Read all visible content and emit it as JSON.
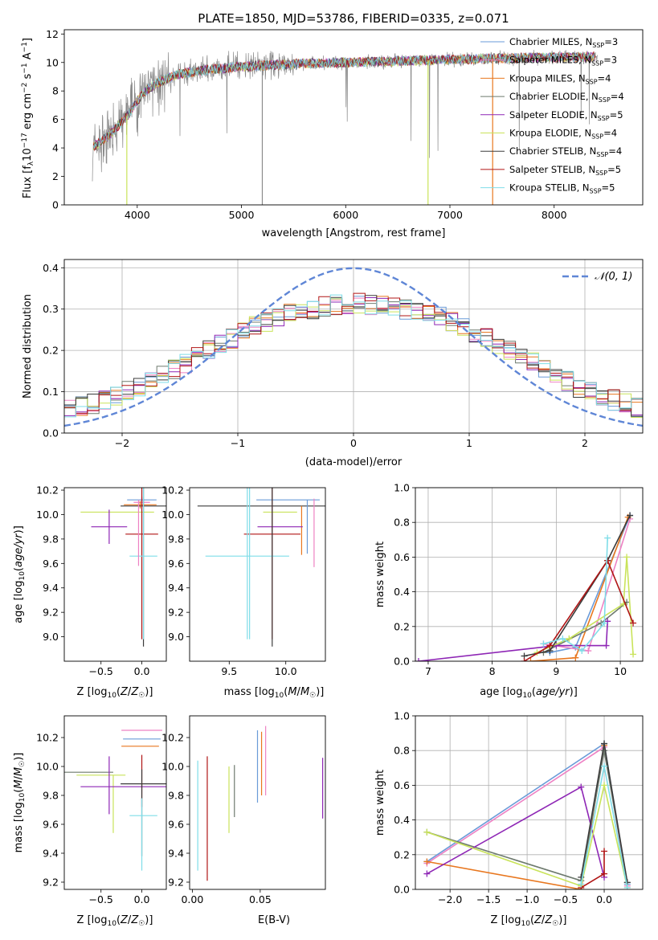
{
  "title": "PLATE=1850, MJD=53786, FIBERID=0335, z=0.071",
  "colors": [
    "#6a9bd8",
    "#ee82c4",
    "#e8771f",
    "#6e7a6e",
    "#8e26b5",
    "#c9e35a",
    "#3b3b3b",
    "#b01515",
    "#7fdde8"
  ],
  "chart_data": [
    {
      "type": "line",
      "panel": "spectrum",
      "xlabel": "wavelength [Angstrom, rest frame]",
      "ylabel": "Flux [f_λ 10^-17 erg cm^-2 s^-1 A^-1]",
      "xlim": [
        3300,
        8850
      ],
      "ylim": [
        0,
        12.3
      ],
      "xticks": [
        "4000",
        "5000",
        "6000",
        "7000",
        "8000"
      ],
      "yticks": [
        "0",
        "2",
        "4",
        "6",
        "8",
        "10",
        "12"
      ],
      "grid": false,
      "legend_position": "right",
      "legend": [
        {
          "label": "Chabrier MILES, N",
          "sub": "SSP",
          "suffix": "=3"
        },
        {
          "label": "Salpeter MILES, N",
          "sub": "SSP",
          "suffix": "=3"
        },
        {
          "label": "Kroupa MILES, N",
          "sub": "SSP",
          "suffix": "=4"
        },
        {
          "label": "Chabrier ELODIE, N",
          "sub": "SSP",
          "suffix": "=4"
        },
        {
          "label": "Salpeter ELODIE, N",
          "sub": "SSP",
          "suffix": "=5"
        },
        {
          "label": "Kroupa ELODIE, N",
          "sub": "SSP",
          "suffix": "=4"
        },
        {
          "label": "Chabrier STELIB, N",
          "sub": "SSP",
          "suffix": "=4"
        },
        {
          "label": "Salpeter STELIB, N",
          "sub": "SSP",
          "suffix": "=5"
        },
        {
          "label": "Kroupa STELIB, N",
          "sub": "SSP",
          "suffix": "=5"
        }
      ],
      "continuum": {
        "x": [
          3560,
          3700,
          3800,
          3900,
          4000,
          4100,
          4200,
          4400,
          4700,
          5000,
          5500,
          6000,
          6500,
          7000,
          7500,
          8000,
          8400
        ],
        "y": [
          4.0,
          4.7,
          5.4,
          6.2,
          7.3,
          8.1,
          8.6,
          9.2,
          9.5,
          9.7,
          9.9,
          10.0,
          10.1,
          10.2,
          10.3,
          10.35,
          10.4
        ]
      }
    },
    {
      "type": "bar",
      "panel": "residuals",
      "xlabel": "(data-model)/error",
      "ylabel": "Normed distribution",
      "xlim": [
        -2.5,
        2.5
      ],
      "ylim": [
        0,
        0.42
      ],
      "xticks": [
        "−2",
        "−1",
        "0",
        "1",
        "2"
      ],
      "yticks": [
        "0.0",
        "0.1",
        "0.2",
        "0.3",
        "0.4"
      ],
      "grid": true,
      "legend_position": "top-right",
      "normal_label": "𝒩(0, 1)",
      "bin_width": 0.1,
      "envelope": [
        0.06,
        0.065,
        0.07,
        0.08,
        0.09,
        0.1,
        0.11,
        0.125,
        0.14,
        0.155,
        0.17,
        0.185,
        0.2,
        0.215,
        0.23,
        0.245,
        0.26,
        0.27,
        0.28,
        0.29,
        0.295,
        0.3,
        0.305,
        0.31,
        0.31,
        0.315,
        0.31,
        0.31,
        0.305,
        0.3,
        0.295,
        0.29,
        0.28,
        0.27,
        0.26,
        0.245,
        0.23,
        0.215,
        0.2,
        0.185,
        0.17,
        0.155,
        0.14,
        0.125,
        0.11,
        0.1,
        0.09,
        0.08,
        0.07,
        0.06
      ]
    },
    {
      "type": "scatter",
      "panel": "age-vs-Z",
      "xlabel": "Z [log10(Z/Z☉)]",
      "ylabel": "age  [log10(age/yr)]",
      "xlim": [
        -0.95,
        0.3
      ],
      "ylim": [
        8.8,
        10.22
      ],
      "xticks": [
        "−0.5",
        "0.0"
      ],
      "yticks": [
        "9.0",
        "9.2",
        "9.4",
        "9.6",
        "9.8",
        "10.0",
        "10.2"
      ],
      "errorbars": [
        {
          "x": 0.0,
          "xerr": 0.18,
          "y": 10.12,
          "yerr": 0.02,
          "c": 0
        },
        {
          "x": 0.0,
          "xerr": 0.1,
          "y": 10.1,
          "yerr": 0.05,
          "c": 1
        },
        {
          "x": -0.02,
          "xerr": 0.2,
          "y": 10.08,
          "yerr": 0.03,
          "c": 2
        },
        {
          "x": -0.3,
          "xerr": 0.45,
          "y": 10.02,
          "yerr": 0.0,
          "c": 5
        },
        {
          "x": -0.4,
          "xerr": 0.22,
          "y": 9.9,
          "yerr": 0.14,
          "c": 4
        },
        {
          "x": 0.02,
          "xerr": 0.28,
          "y": 10.07,
          "yerr": 1.15,
          "c": 6
        },
        {
          "x": 0.0,
          "xerr": 0.2,
          "y": 9.84,
          "yerr": 0.86,
          "c": 7
        },
        {
          "x": 0.02,
          "xerr": 0.17,
          "y": 9.66,
          "yerr": 0.68,
          "c": 8
        },
        {
          "x": -0.04,
          "xerr": 0.0,
          "y": 9.85,
          "yerr": 0.27,
          "c": 1
        }
      ]
    },
    {
      "type": "scatter",
      "panel": "age-vs-mass",
      "xlabel": "mass [log10(M/M☉)]",
      "ylabel": "",
      "xlim": [
        9.15,
        10.35
      ],
      "ylim": [
        8.8,
        10.22
      ],
      "xticks": [
        "9.5",
        "10.0"
      ],
      "yticks": [
        "9.0",
        "9.2",
        "9.4",
        "9.6",
        "9.8",
        "10.0",
        "10.2"
      ],
      "errorbars": [
        {
          "x": 9.9,
          "xerr": 0.68,
          "y": 10.07,
          "yerr": 0.0,
          "c": 6
        },
        {
          "x": 10.02,
          "xerr": 0.28,
          "y": 10.12,
          "yerr": 0.0,
          "c": 0
        },
        {
          "x": 10.25,
          "xerr": 0.0,
          "y": 9.85,
          "yerr": 0.28,
          "c": 1
        },
        {
          "x": 10.19,
          "xerr": 0.0,
          "y": 9.9,
          "yerr": 0.22,
          "c": 0
        },
        {
          "x": 10.14,
          "xerr": 0.0,
          "y": 9.87,
          "yerr": 0.2,
          "c": 2
        },
        {
          "x": 9.95,
          "xerr": 0.2,
          "y": 9.9,
          "yerr": 0.0,
          "c": 4
        },
        {
          "x": 9.95,
          "xerr": 0.15,
          "y": 10.02,
          "yerr": 0.0,
          "c": 5
        },
        {
          "x": 9.88,
          "xerr": 0.25,
          "y": 9.84,
          "yerr": 0.86,
          "c": 7
        },
        {
          "x": 9.66,
          "xerr": 0.37,
          "y": 9.66,
          "yerr": 0.68,
          "c": 8
        },
        {
          "x": 9.88,
          "xerr": 0.0,
          "y": 10.07,
          "yerr": 1.15,
          "c": 6
        },
        {
          "x": 9.68,
          "xerr": 0.0,
          "y": 9.66,
          "yerr": 0.68,
          "c": 8
        }
      ]
    },
    {
      "type": "line",
      "panel": "weight-vs-age",
      "xlabel": "age  [log10(age/yr)]",
      "ylabel": "mass weight",
      "xlim": [
        6.8,
        10.35
      ],
      "ylim": [
        0,
        1.0
      ],
      "xticks": [
        "7",
        "8",
        "9",
        "10"
      ],
      "yticks": [
        "0.0",
        "0.2",
        "0.4",
        "0.6",
        "0.8",
        "1.0"
      ],
      "grid": true,
      "series": [
        {
          "c": 0,
          "x": [
            8.9,
            9.3,
            10.15
          ],
          "y": [
            0.05,
            0.08,
            0.84
          ]
        },
        {
          "c": 1,
          "x": [
            8.8,
            9.5,
            10.15
          ],
          "y": [
            0.1,
            0.06,
            0.82
          ]
        },
        {
          "c": 2,
          "x": [
            8.6,
            9.3,
            10.12
          ],
          "y": [
            0.0,
            0.02,
            0.83
          ]
        },
        {
          "c": 3,
          "x": [
            8.8,
            9.7,
            10.1
          ],
          "y": [
            0.05,
            0.22,
            0.34
          ]
        },
        {
          "c": 4,
          "x": [
            6.85,
            9.0,
            9.78,
            9.8
          ],
          "y": [
            0.0,
            0.09,
            0.09,
            0.23
          ]
        },
        {
          "c": 5,
          "x": [
            8.7,
            9.2,
            10.05,
            10.1,
            10.2
          ],
          "y": [
            0.05,
            0.13,
            0.33,
            0.6,
            0.04
          ]
        },
        {
          "c": 6,
          "x": [
            8.5,
            8.9,
            9.8,
            10.15
          ],
          "y": [
            0.03,
            0.06,
            0.58,
            0.84
          ]
        },
        {
          "c": 7,
          "x": [
            8.5,
            8.9,
            9.8,
            10.2
          ],
          "y": [
            0.0,
            0.09,
            0.58,
            0.22
          ]
        },
        {
          "c": 8,
          "x": [
            8.8,
            9.1,
            9.4,
            9.75,
            9.8
          ],
          "y": [
            0.1,
            0.13,
            0.06,
            0.22,
            0.71
          ]
        }
      ]
    },
    {
      "type": "scatter",
      "panel": "mass-vs-Z",
      "xlabel": "Z [log10(Z/Z☉)]",
      "ylabel": "mass [log10(M/M☉)]",
      "xlim": [
        -0.95,
        0.3
      ],
      "ylim": [
        9.15,
        10.35
      ],
      "xticks": [
        "−0.5",
        "0.0"
      ],
      "yticks": [
        "9.2",
        "9.4",
        "9.6",
        "9.8",
        "10.0",
        "10.2"
      ],
      "errorbars": [
        {
          "x": 0.0,
          "xerr": 0.25,
          "y": 10.25,
          "yerr": 0.0,
          "c": 1
        },
        {
          "x": 0.0,
          "xerr": 0.23,
          "y": 10.19,
          "yerr": 0.0,
          "c": 0
        },
        {
          "x": -0.02,
          "xerr": 0.23,
          "y": 10.14,
          "yerr": 0.0,
          "c": 2
        },
        {
          "x": -0.65,
          "xerr": 0.3,
          "y": 9.96,
          "yerr": 0.0,
          "c": 3
        },
        {
          "x": -0.5,
          "xerr": 0.3,
          "y": 9.94,
          "yerr": 0.0,
          "c": 5
        },
        {
          "x": -0.4,
          "xerr": 0.0,
          "y": 9.87,
          "yerr": 0.2,
          "c": 4
        },
        {
          "x": -0.35,
          "xerr": 0.0,
          "y": 9.74,
          "yerr": 0.2,
          "c": 5
        },
        {
          "x": 0.02,
          "xerr": 0.28,
          "y": 9.88,
          "yerr": 0.0,
          "c": 6
        },
        {
          "x": -0.2,
          "xerr": 0.55,
          "y": 9.86,
          "yerr": 0.0,
          "c": 4
        },
        {
          "x": 0.0,
          "xerr": 0.0,
          "y": 9.9,
          "yerr": 0.18,
          "c": 7
        },
        {
          "x": 0.0,
          "xerr": 0.0,
          "y": 9.68,
          "yerr": 0.3,
          "c": 6
        },
        {
          "x": 0.02,
          "xerr": 0.17,
          "y": 9.66,
          "yerr": 0.0,
          "c": 8
        },
        {
          "x": 0.0,
          "xerr": 0.0,
          "y": 9.53,
          "yerr": 0.25,
          "c": 8
        }
      ]
    },
    {
      "type": "scatter",
      "panel": "mass-vs-EBV",
      "xlabel": "E(B-V)",
      "ylabel": "",
      "xlim": [
        -0.002,
        0.098
      ],
      "ylim": [
        9.15,
        10.35
      ],
      "xticks": [
        "0.00",
        "0.05"
      ],
      "yticks": [
        "9.2",
        "9.4",
        "9.6",
        "9.8",
        "10.0",
        "10.2"
      ],
      "errorbars": [
        {
          "x": 0.004,
          "xerr": 0.0,
          "y": 9.66,
          "yerr": 0.38,
          "c": 8
        },
        {
          "x": 0.011,
          "xerr": 0.0,
          "y": 9.64,
          "yerr": 0.43,
          "c": 7
        },
        {
          "x": 0.027,
          "xerr": 0.0,
          "y": 9.77,
          "yerr": 0.23,
          "c": 5
        },
        {
          "x": 0.031,
          "xerr": 0.0,
          "y": 9.83,
          "yerr": 0.18,
          "c": 3
        },
        {
          "x": 0.048,
          "xerr": 0.0,
          "y": 10.0,
          "yerr": 0.25,
          "c": 0
        },
        {
          "x": 0.051,
          "xerr": 0.0,
          "y": 10.02,
          "yerr": 0.22,
          "c": 2
        },
        {
          "x": 0.054,
          "xerr": 0.0,
          "y": 10.04,
          "yerr": 0.24,
          "c": 1
        },
        {
          "x": 0.096,
          "xerr": 0.0,
          "y": 9.85,
          "yerr": 0.21,
          "c": 4
        }
      ]
    },
    {
      "type": "line",
      "panel": "weight-vs-Z",
      "xlabel": "Z [log10(Z/Z☉)]",
      "ylabel": "mass weight",
      "xlim": [
        -2.45,
        0.5
      ],
      "ylim": [
        0,
        1.0
      ],
      "xticks": [
        "−2.0",
        "−1.5",
        "−1.0",
        "−0.5",
        "0.0"
      ],
      "yticks": [
        "0.0",
        "0.2",
        "0.4",
        "0.6",
        "0.8",
        "1.0"
      ],
      "grid": true,
      "series": [
        {
          "c": 0,
          "x": [
            -2.3,
            0.0,
            0.3
          ],
          "y": [
            0.16,
            0.84,
            0.03
          ]
        },
        {
          "c": 1,
          "x": [
            -2.3,
            0.0,
            0.3
          ],
          "y": [
            0.15,
            0.82,
            0.02
          ]
        },
        {
          "c": 2,
          "x": [
            -2.3,
            -0.3,
            0.0
          ],
          "y": [
            0.16,
            0.0,
            0.83
          ]
        },
        {
          "c": 3,
          "x": [
            -2.3,
            -0.3,
            0.0,
            0.3
          ],
          "y": [
            0.33,
            0.05,
            0.8,
            0.04
          ]
        },
        {
          "c": 4,
          "x": [
            -2.3,
            -0.3,
            0.0
          ],
          "y": [
            0.09,
            0.59,
            0.07
          ]
        },
        {
          "c": 5,
          "x": [
            -2.3,
            -0.3,
            0.0,
            0.3
          ],
          "y": [
            0.33,
            0.02,
            0.6,
            0.01
          ]
        },
        {
          "c": 6,
          "x": [
            -0.3,
            0.0,
            0.3
          ],
          "y": [
            0.07,
            0.84,
            0.04
          ]
        },
        {
          "c": 7,
          "x": [
            -0.3,
            0.0,
            0.0
          ],
          "y": [
            0.01,
            0.09,
            0.22
          ]
        },
        {
          "c": 8,
          "x": [
            -0.3,
            0.0,
            0.3
          ],
          "y": [
            0.03,
            0.71,
            0.01
          ]
        }
      ]
    }
  ]
}
